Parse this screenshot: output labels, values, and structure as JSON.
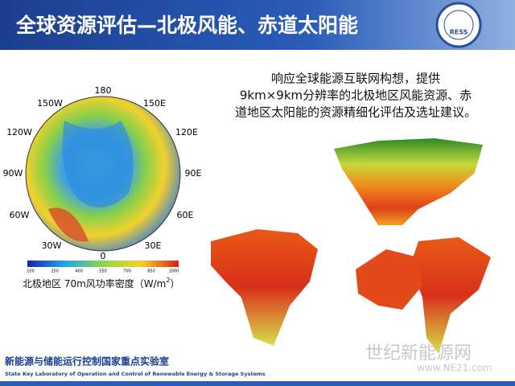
{
  "header": {
    "title": "全球资源评估—北极风能、赤道太阳能",
    "logo_text": "RESS"
  },
  "body": {
    "lines": [
      "响应全球能源互联网构想，提供",
      "9km×9km分辨率的北极地区风能资源、赤",
      "道地区太阳能的资源精细化评估及选址建议。"
    ]
  },
  "polar_map": {
    "labels": [
      "180",
      "150W",
      "150E",
      "120W",
      "120E",
      "90W",
      "90E",
      "60W",
      "60E",
      "30W",
      "30E",
      "0"
    ],
    "colorbar_ticks": [
      "100",
      "250",
      "400",
      "550",
      "700",
      "850",
      "1000"
    ],
    "caption": {
      "text": "北极地区 70m风功率密度（W/m",
      "sup": "2",
      "end": "）"
    }
  },
  "footer": {
    "cn": "新能源与储能运行控制国家重点实验室",
    "en": "State Key Laboratory of Operation and Control of Renewable Energy & Storage Systems"
  },
  "watermark": {
    "cn": "世纪新能源网",
    "url": "www.NE21.com"
  }
}
